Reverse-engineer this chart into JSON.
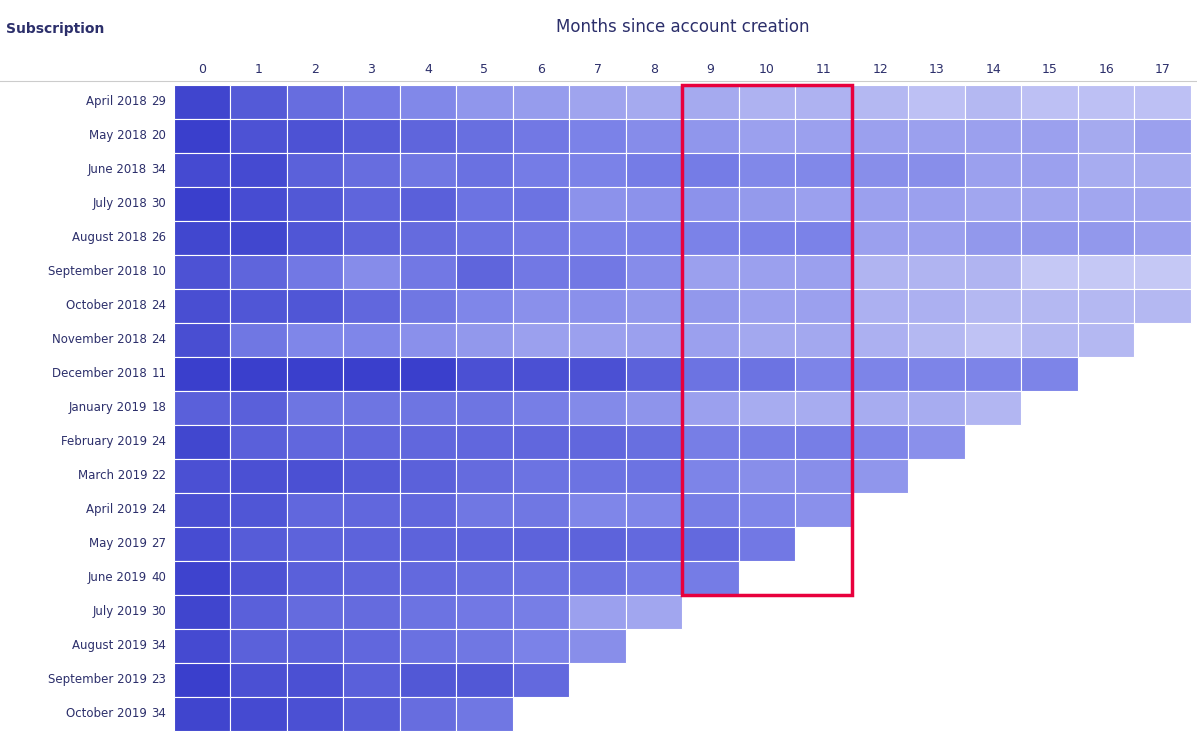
{
  "title": "Months since account creation",
  "col_label": "Subscription",
  "months": [
    0,
    1,
    2,
    3,
    4,
    5,
    6,
    7,
    8,
    9,
    10,
    11,
    12,
    13,
    14,
    15,
    16,
    17
  ],
  "rows": [
    {
      "label": "April 2018",
      "n": 29,
      "values": [
        97,
        86,
        76,
        69,
        62,
        55,
        52,
        48,
        45,
        45,
        41,
        41,
        38,
        34,
        38,
        34,
        34,
        34
      ]
    },
    {
      "label": "May 2018",
      "n": 20,
      "values": [
        100,
        90,
        90,
        85,
        80,
        75,
        70,
        65,
        60,
        55,
        50,
        50,
        50,
        50,
        50,
        50,
        45,
        50
      ]
    },
    {
      "label": "June 2018",
      "n": 34,
      "values": [
        94,
        94,
        82,
        76,
        71,
        74,
        68,
        65,
        68,
        68,
        62,
        62,
        59,
        59,
        50,
        50,
        44,
        44
      ]
    },
    {
      "label": "July 2018",
      "n": 30,
      "values": [
        100,
        93,
        87,
        80,
        83,
        73,
        73,
        57,
        57,
        57,
        53,
        50,
        50,
        50,
        47,
        47,
        47,
        47
      ]
    },
    {
      "label": "August 2018",
      "n": 26,
      "values": [
        96,
        96,
        88,
        81,
        77,
        73,
        69,
        65,
        65,
        65,
        65,
        65,
        50,
        50,
        54,
        54,
        54,
        50
      ]
    },
    {
      "label": "September 2018",
      "n": 10,
      "values": [
        90,
        80,
        70,
        60,
        70,
        80,
        70,
        70,
        60,
        50,
        50,
        50,
        40,
        40,
        40,
        30,
        30,
        30
      ]
    },
    {
      "label": "October 2018",
      "n": 24,
      "values": [
        92,
        88,
        88,
        79,
        71,
        63,
        58,
        58,
        54,
        54,
        50,
        50,
        42,
        42,
        38,
        38,
        38,
        38
      ]
    },
    {
      "label": "November 2018",
      "n": 24,
      "values": [
        92,
        71,
        63,
        63,
        58,
        54,
        50,
        50,
        50,
        50,
        46,
        46,
        42,
        38,
        33,
        38,
        38,
        null
      ]
    },
    {
      "label": "December 2018",
      "n": 11,
      "values": [
        100,
        100,
        100,
        100,
        100,
        91,
        91,
        91,
        82,
        73,
        73,
        64,
        64,
        64,
        64,
        64,
        null,
        null
      ]
    },
    {
      "label": "January 2019",
      "n": 18,
      "values": [
        83,
        83,
        72,
        72,
        72,
        72,
        67,
        61,
        56,
        50,
        44,
        44,
        44,
        44,
        39,
        null,
        null,
        null
      ]
    },
    {
      "label": "February 2019",
      "n": 24,
      "values": [
        96,
        83,
        79,
        79,
        79,
        79,
        79,
        79,
        75,
        67,
        67,
        67,
        63,
        58,
        null,
        null,
        null,
        null
      ]
    },
    {
      "label": "March 2019",
      "n": 22,
      "values": [
        91,
        91,
        91,
        86,
        82,
        77,
        73,
        73,
        73,
        64,
        59,
        59,
        55,
        null,
        null,
        null,
        null,
        null
      ]
    },
    {
      "label": "April 2019",
      "n": 24,
      "values": [
        92,
        88,
        79,
        79,
        79,
        71,
        71,
        63,
        63,
        67,
        63,
        58,
        null,
        null,
        null,
        null,
        null,
        null
      ]
    },
    {
      "label": "May 2019",
      "n": 27,
      "values": [
        93,
        85,
        81,
        81,
        81,
        81,
        81,
        81,
        78,
        78,
        70,
        null,
        null,
        null,
        null,
        null,
        null,
        null
      ]
    },
    {
      "label": "June 2019",
      "n": 40,
      "values": [
        98,
        90,
        83,
        80,
        78,
        75,
        73,
        73,
        68,
        68,
        null,
        null,
        null,
        null,
        null,
        null,
        null,
        null
      ]
    },
    {
      "label": "July 2019",
      "n": 30,
      "values": [
        97,
        83,
        77,
        77,
        73,
        70,
        67,
        50,
        47,
        null,
        null,
        null,
        null,
        null,
        null,
        null,
        null,
        null
      ]
    },
    {
      "label": "August 2019",
      "n": 34,
      "values": [
        94,
        82,
        82,
        79,
        74,
        71,
        65,
        59,
        null,
        null,
        null,
        null,
        null,
        null,
        null,
        null,
        null,
        null
      ]
    },
    {
      "label": "September 2019",
      "n": 23,
      "values": [
        100,
        91,
        91,
        83,
        87,
        87,
        78,
        null,
        null,
        null,
        null,
        null,
        null,
        null,
        null,
        null,
        null,
        null
      ]
    },
    {
      "label": "October 2019",
      "n": 34,
      "values": [
        97,
        94,
        91,
        85,
        76,
        71,
        null,
        null,
        null,
        null,
        null,
        null,
        null,
        null,
        null,
        null,
        null,
        null
      ]
    }
  ],
  "highlight_cols": [
    9,
    10,
    11
  ],
  "highlight_color": "#e8003d",
  "bg_color": "#ffffff",
  "cell_color_low": [
    197,
    200,
    245
  ],
  "cell_color_mid": [
    123,
    130,
    232
  ],
  "cell_color_high": [
    58,
    63,
    204
  ],
  "text_color_dark": "#2c2f6b",
  "text_color_light": "#ffffff"
}
